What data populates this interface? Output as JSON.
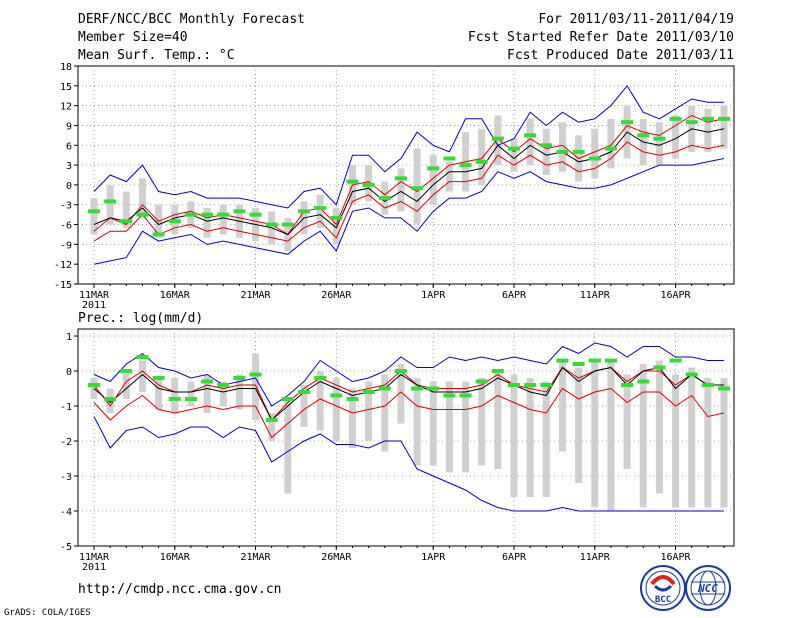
{
  "header": {
    "title": "DERF/NCC/BCC Monthly Forecast",
    "member": "Member Size=40",
    "variable": "Mean Surf. Temp.: °C",
    "period": "For 2011/03/11-2011/04/19",
    "refer": "Fcst Started Refer Date 2011/03/10",
    "produced": "Fcst Produced Date 2011/03/11"
  },
  "footer": {
    "url": "http://cmdp.ncc.cma.gov.cn",
    "grads": "GrADS: COLA/IGES",
    "logo_left": "BCC",
    "logo_right": "NCC"
  },
  "colors": {
    "envelope": "#0000cc",
    "spread": "#dd0000",
    "mean": "#000000",
    "bar": "#d0d0d0",
    "observed": "#33dd33",
    "grid": "#888888"
  },
  "chart_data": [
    {
      "type": "line",
      "title": "Mean Surf. Temp.: °C",
      "x_tick_labels": [
        "11MAR",
        "16MAR",
        "21MAR",
        "26MAR",
        "1APR",
        "6APR",
        "11APR",
        "16APR"
      ],
      "x_tick_days": [
        0,
        5,
        10,
        15,
        21,
        26,
        31,
        36
      ],
      "year_label": "2011",
      "y_ticks": [
        "18",
        "15",
        "12",
        "9",
        "6",
        "3",
        "0",
        "-3",
        "-6",
        "-9",
        "-12",
        "-15"
      ],
      "ylim": [
        -15,
        18
      ],
      "day_count": 40,
      "series": [
        {
          "name": "upper",
          "values": [
            -1,
            1.5,
            0.5,
            3,
            -1,
            -1.5,
            -1,
            -2,
            -2,
            -2,
            -2.5,
            -3,
            -3.5,
            -1,
            -0.5,
            -3,
            4.5,
            4.5,
            2,
            4,
            8,
            6,
            5,
            10,
            10,
            6,
            7,
            11,
            9,
            11,
            9.5,
            10,
            12,
            15,
            11,
            10,
            11.5,
            13,
            12.5,
            12.5
          ]
        },
        {
          "name": "upper_red",
          "values": [
            -7,
            -5,
            -6,
            -3,
            -5.5,
            -4.5,
            -4,
            -5,
            -4.5,
            -5,
            -5.5,
            -6,
            -7.5,
            -4,
            -3.5,
            -6,
            0,
            0.5,
            -1.5,
            0.5,
            -1,
            1,
            3,
            3.5,
            4,
            7,
            5,
            7,
            5.5,
            6,
            4,
            5,
            6,
            9,
            8,
            7.5,
            9,
            10.5,
            9.5,
            10
          ]
        },
        {
          "name": "mean",
          "values": [
            -6,
            -5,
            -5.5,
            -3.5,
            -6,
            -5,
            -4.5,
            -5.5,
            -5,
            -5.5,
            -6,
            -6.5,
            -7.5,
            -5,
            -4.5,
            -6.5,
            -1,
            -0.5,
            -2.5,
            -1,
            -2.5,
            0,
            2,
            2,
            2.5,
            6,
            4,
            6,
            4.5,
            5,
            3.5,
            4,
            5,
            8,
            6.5,
            6,
            7,
            8.5,
            8,
            8.5
          ]
        },
        {
          "name": "lower_red",
          "values": [
            -8.5,
            -7,
            -7,
            -4.5,
            -7.5,
            -6.5,
            -6,
            -7,
            -6.5,
            -7,
            -7.5,
            -8,
            -8.5,
            -6.5,
            -5.5,
            -8,
            -2.5,
            -1.5,
            -3.5,
            -2.5,
            -4,
            -1.5,
            0.5,
            0.5,
            1,
            4.5,
            3,
            4.5,
            3,
            3.5,
            2,
            2.5,
            4,
            6.5,
            5,
            4.5,
            5,
            6,
            5.5,
            6
          ]
        },
        {
          "name": "lower",
          "values": [
            -12,
            -11.5,
            -11,
            -7,
            -8.5,
            -8,
            -7.5,
            -9,
            -8.5,
            -9,
            -9.5,
            -10,
            -10.5,
            -8.5,
            -7,
            -10,
            -4,
            -3.5,
            -5,
            -5,
            -7,
            -4,
            -2,
            -2,
            -1,
            2,
            1,
            2,
            0.5,
            0,
            -0.5,
            -0.5,
            0,
            1,
            2,
            3,
            3,
            3,
            3.5,
            4
          ]
        },
        {
          "name": "observed",
          "values": [
            -4,
            -2.5,
            -5.5,
            -4.5,
            -7.5,
            -5.5,
            -4.5,
            -4.5,
            -4.5,
            -4,
            -4.5,
            -6,
            -6,
            -4,
            -3.5,
            -5,
            0.5,
            0,
            -2,
            1,
            -0.5,
            2.5,
            4,
            3,
            3.5,
            7,
            5.5,
            7.5,
            6,
            5,
            5,
            4,
            5.5,
            9.5,
            7.5,
            7,
            10,
            9.5,
            10,
            10
          ]
        },
        {
          "name": "bar_high",
          "values": [
            -2,
            0,
            -1,
            1,
            -3,
            -3,
            -2.5,
            -3.5,
            -3,
            -3,
            -3.5,
            -4,
            -5,
            -2.5,
            -1.5,
            -3.5,
            3,
            3,
            0.5,
            2.5,
            5.5,
            4.5,
            3.5,
            8,
            8.5,
            10.5,
            7,
            10,
            8.5,
            9.5,
            7.5,
            8.5,
            10,
            12,
            10,
            9.5,
            10.5,
            12,
            11.5,
            12
          ]
        },
        {
          "name": "bar_low",
          "values": [
            -7.5,
            -6,
            -6.5,
            -5,
            -8,
            -7.5,
            -6.5,
            -8,
            -7.5,
            -8,
            -8.5,
            -9,
            -10,
            -7.5,
            -6.5,
            -9,
            -3,
            -2.5,
            -4.5,
            -4,
            -6,
            -3,
            -1,
            -1,
            0,
            3,
            2,
            3,
            1.5,
            2,
            0.5,
            1,
            2.5,
            4,
            3,
            3,
            4,
            5,
            5,
            5.5
          ]
        }
      ]
    },
    {
      "type": "line",
      "title": "Prec.: log(mm/d)",
      "x_tick_labels": [
        "11MAR",
        "16MAR",
        "21MAR",
        "26MAR",
        "1APR",
        "6APR",
        "11APR",
        "16APR"
      ],
      "x_tick_days": [
        0,
        5,
        10,
        15,
        21,
        26,
        31,
        36
      ],
      "year_label": "2011",
      "y_ticks": [
        "1",
        "0",
        "-1",
        "-2",
        "-3",
        "-4",
        "-5"
      ],
      "ylim": [
        -5,
        1.2
      ],
      "day_count": 40,
      "series": [
        {
          "name": "upper",
          "values": [
            -0.1,
            -0.3,
            0.2,
            0.5,
            0.1,
            0.0,
            -0.2,
            -0.1,
            -0.4,
            -0.3,
            -0.2,
            -1.0,
            -0.7,
            -0.3,
            0.3,
            0.0,
            -0.3,
            -0.2,
            0.0,
            0.4,
            0.1,
            0.1,
            0.4,
            0.3,
            0.4,
            0.3,
            0.4,
            0.3,
            0.2,
            0.7,
            0.5,
            0.8,
            0.7,
            0.4,
            0.7,
            0.7,
            0.4,
            0.4,
            0.3,
            0.3
          ]
        },
        {
          "name": "upper_red",
          "values": [
            -0.4,
            -1.0,
            -0.3,
            0.0,
            -0.4,
            -0.6,
            -0.6,
            -0.4,
            -0.5,
            -0.4,
            -0.4,
            -1.4,
            -0.9,
            -0.5,
            -0.2,
            -0.4,
            -0.6,
            -0.5,
            -0.4,
            0.0,
            -0.4,
            -0.5,
            -0.5,
            -0.5,
            -0.4,
            -0.1,
            -0.4,
            -0.5,
            -0.6,
            0.1,
            -0.2,
            0.0,
            0.1,
            -0.3,
            0.0,
            0.0,
            -0.4,
            -0.1,
            -0.4,
            -0.4
          ]
        },
        {
          "name": "mean",
          "values": [
            -0.5,
            -0.9,
            -0.5,
            -0.1,
            -0.5,
            -0.6,
            -0.6,
            -0.5,
            -0.6,
            -0.5,
            -0.5,
            -1.4,
            -1.0,
            -0.6,
            -0.3,
            -0.5,
            -0.7,
            -0.6,
            -0.5,
            -0.1,
            -0.4,
            -0.6,
            -0.6,
            -0.6,
            -0.5,
            -0.2,
            -0.4,
            -0.6,
            -0.7,
            0.1,
            -0.3,
            0.0,
            0.1,
            -0.4,
            0.0,
            0.1,
            -0.5,
            -0.1,
            -0.4,
            -0.4
          ]
        },
        {
          "name": "lower_red",
          "values": [
            -0.9,
            -1.4,
            -1.0,
            -0.7,
            -1.1,
            -1.2,
            -1.1,
            -1.0,
            -1.1,
            -1.0,
            -1.0,
            -1.9,
            -1.5,
            -1.1,
            -0.8,
            -1.0,
            -1.2,
            -1.1,
            -1.0,
            -0.6,
            -1.0,
            -1.1,
            -1.1,
            -1.1,
            -1.0,
            -0.7,
            -0.9,
            -1.1,
            -1.2,
            -0.5,
            -0.8,
            -0.6,
            -0.5,
            -0.9,
            -0.6,
            -0.6,
            -1.0,
            -0.7,
            -1.3,
            -1.2
          ]
        },
        {
          "name": "lower",
          "values": [
            -1.3,
            -2.2,
            -1.7,
            -1.6,
            -1.9,
            -1.8,
            -1.6,
            -1.6,
            -1.9,
            -1.6,
            -1.7,
            -2.6,
            -2.3,
            -2.0,
            -1.8,
            -2.1,
            -2.1,
            -2.2,
            -2.0,
            -2.0,
            -2.8,
            -3.0,
            -3.2,
            -3.4,
            -3.7,
            -3.9,
            -4.0,
            -4.0,
            -4.0,
            -3.9,
            -4.0,
            -4.0,
            -4.0,
            -4.0,
            -4.0,
            -4.0,
            -4.0,
            -4.0,
            -4.0,
            -4.0
          ]
        },
        {
          "name": "observed",
          "values": [
            -0.4,
            -0.8,
            0.0,
            0.4,
            -0.2,
            -0.8,
            -0.8,
            -0.3,
            -0.4,
            -0.2,
            -0.1,
            -1.4,
            -0.8,
            -0.6,
            -0.2,
            -0.7,
            -0.8,
            -0.6,
            -0.5,
            0.0,
            -0.5,
            -0.5,
            -0.7,
            -0.7,
            -0.3,
            0.0,
            -0.4,
            -0.4,
            -0.4,
            0.3,
            0.2,
            0.3,
            0.3,
            -0.4,
            -0.3,
            0.1,
            0.3,
            -0.1,
            -0.4,
            -0.5
          ]
        },
        {
          "name": "bar_high",
          "values": [
            -0.2,
            -0.5,
            0.0,
            0.3,
            -0.2,
            -0.2,
            -0.3,
            -0.1,
            -0.3,
            -0.1,
            0.5,
            -1.2,
            -0.8,
            -0.4,
            0.0,
            -0.2,
            -0.5,
            -0.3,
            -0.1,
            0.2,
            -0.2,
            -0.3,
            -0.3,
            -0.3,
            -0.2,
            0.0,
            -0.1,
            -0.2,
            -0.3,
            0.3,
            0.1,
            0.3,
            0.3,
            -0.1,
            0.2,
            0.3,
            -0.1,
            0.1,
            -0.2,
            -0.2
          ]
        },
        {
          "name": "bar_low",
          "values": [
            -0.8,
            -1.2,
            -0.8,
            -0.6,
            -1.1,
            -1.2,
            -1.0,
            -1.2,
            -1.0,
            -1.1,
            -1.4,
            -2.0,
            -3.5,
            -1.6,
            -1.7,
            -2.0,
            -2.2,
            -2.0,
            -2.3,
            -1.5,
            -2.7,
            -2.7,
            -2.9,
            -2.9,
            -2.7,
            -2.8,
            -3.6,
            -3.6,
            -3.6,
            -2.3,
            -3.2,
            -3.9,
            -4.0,
            -2.8,
            -3.9,
            -3.5,
            -3.9,
            -3.9,
            -3.9,
            -3.9
          ]
        }
      ]
    }
  ]
}
